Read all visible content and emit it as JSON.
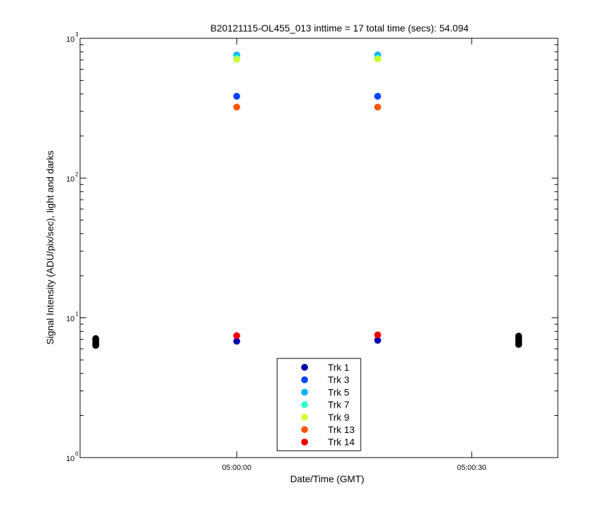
{
  "chart_data": {
    "type": "scatter",
    "title": "B20121115-OL455_013 inttime = 17 total time (secs): 54.094",
    "xlabel": "Date/Time (GMT)",
    "ylabel": "Signal Intensity (ADU/pix/sec), light and darks",
    "y_scale": "log",
    "ylim": [
      1,
      1000
    ],
    "xlim": [
      "04:59:40",
      "05:00:41"
    ],
    "x_ticks": [
      {
        "value": "05:00:00",
        "label": "05:00:00"
      },
      {
        "value": "05:00:30",
        "label": "05:00:30"
      }
    ],
    "y_ticks": [
      {
        "value": 1,
        "base": "10",
        "exp": "0"
      },
      {
        "value": 10,
        "base": "10",
        "exp": "1"
      },
      {
        "value": 100,
        "base": "10",
        "exp": "2"
      },
      {
        "value": 1000,
        "base": "10",
        "exp": "3"
      }
    ],
    "grid": false,
    "legend_position": "bottom-center",
    "series": [
      {
        "name": "Trk 1",
        "color": "#0000aa",
        "points": [
          {
            "x": "05:00:00",
            "y": 6.8
          },
          {
            "x": "05:00:18",
            "y": 6.9
          }
        ]
      },
      {
        "name": "Trk 3",
        "color": "#0044ff",
        "points": [
          {
            "x": "05:00:00",
            "y": 385
          },
          {
            "x": "05:00:18",
            "y": 385
          }
        ]
      },
      {
        "name": "Trk 5",
        "color": "#00b4ff",
        "points": [
          {
            "x": "05:00:00",
            "y": 760
          },
          {
            "x": "05:00:18",
            "y": 760
          }
        ]
      },
      {
        "name": "Trk 7",
        "color": "#33ffcc",
        "points": [
          {
            "x": "05:00:00",
            "y": 720
          },
          {
            "x": "05:00:18",
            "y": 720
          }
        ]
      },
      {
        "name": "Trk 9",
        "color": "#ccff33",
        "points": [
          {
            "x": "05:00:00",
            "y": 705
          },
          {
            "x": "05:00:18",
            "y": 710
          }
        ]
      },
      {
        "name": "Trk 13",
        "color": "#ff5500",
        "points": [
          {
            "x": "05:00:00",
            "y": 322
          },
          {
            "x": "05:00:18",
            "y": 322
          }
        ]
      },
      {
        "name": "Trk 14",
        "color": "#ee0000",
        "points": [
          {
            "x": "05:00:00",
            "y": 7.45
          },
          {
            "x": "05:00:18",
            "y": 7.55
          }
        ]
      }
    ],
    "dark_points": {
      "color": "#000000",
      "points": [
        {
          "x": "04:59:42",
          "y": 7.1
        },
        {
          "x": "04:59:42",
          "y": 6.9
        },
        {
          "x": "04:59:42",
          "y": 6.7
        },
        {
          "x": "04:59:42",
          "y": 6.5
        },
        {
          "x": "04:59:42",
          "y": 6.35
        },
        {
          "x": "05:00:36",
          "y": 7.4
        },
        {
          "x": "05:00:36",
          "y": 7.1
        },
        {
          "x": "05:00:36",
          "y": 6.85
        },
        {
          "x": "05:00:36",
          "y": 6.6
        },
        {
          "x": "05:00:36",
          "y": 6.45
        }
      ]
    }
  }
}
